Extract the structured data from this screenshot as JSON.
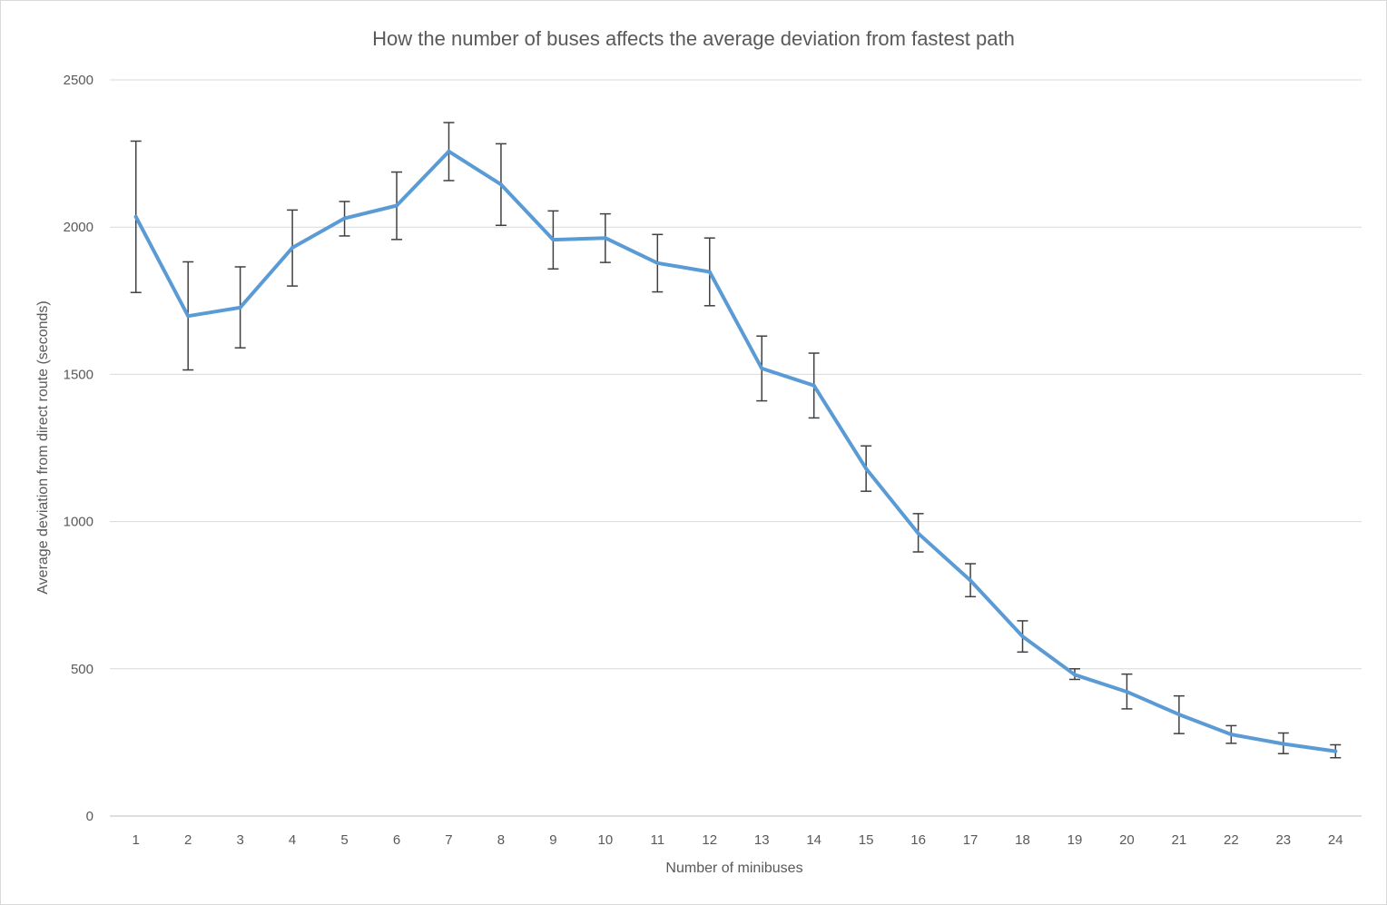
{
  "chart_data": {
    "type": "line",
    "title": "How the number of buses affects the average deviation from fastest path",
    "xlabel": "Number of minibuses",
    "ylabel": "Average deviation from direct route (seconds)",
    "ylim": [
      0,
      2500
    ],
    "yticks": [
      0,
      500,
      1000,
      1500,
      2000,
      2500
    ],
    "grid": "horizontal",
    "legend": "none",
    "categories": [
      "1",
      "2",
      "3",
      "4",
      "5",
      "6",
      "7",
      "8",
      "9",
      "10",
      "11",
      "12",
      "13",
      "14",
      "15",
      "16",
      "17",
      "18",
      "19",
      "20",
      "21",
      "22",
      "23",
      "24"
    ],
    "series": [
      {
        "color": "#5b9bd5",
        "values": [
          2035,
          1698,
          1727,
          1930,
          2030,
          2073,
          2257,
          2145,
          1957,
          1963,
          1878,
          1848,
          1520,
          1462,
          1180,
          960,
          800,
          610,
          480,
          422,
          345,
          277,
          245,
          220
        ],
        "error_low": [
          1778,
          1515,
          1590,
          1800,
          1970,
          1958,
          2158,
          2006,
          1858,
          1880,
          1780,
          1733,
          1410,
          1352,
          1103,
          897,
          745,
          557,
          464,
          364,
          280,
          247,
          212,
          198
        ],
        "error_high": [
          2292,
          1882,
          1865,
          2058,
          2087,
          2187,
          2355,
          2283,
          2055,
          2045,
          1975,
          1963,
          1630,
          1572,
          1257,
          1027,
          857,
          663,
          500,
          482,
          408,
          307,
          282,
          242
        ]
      }
    ],
    "error_bar_color": "#404040"
  }
}
